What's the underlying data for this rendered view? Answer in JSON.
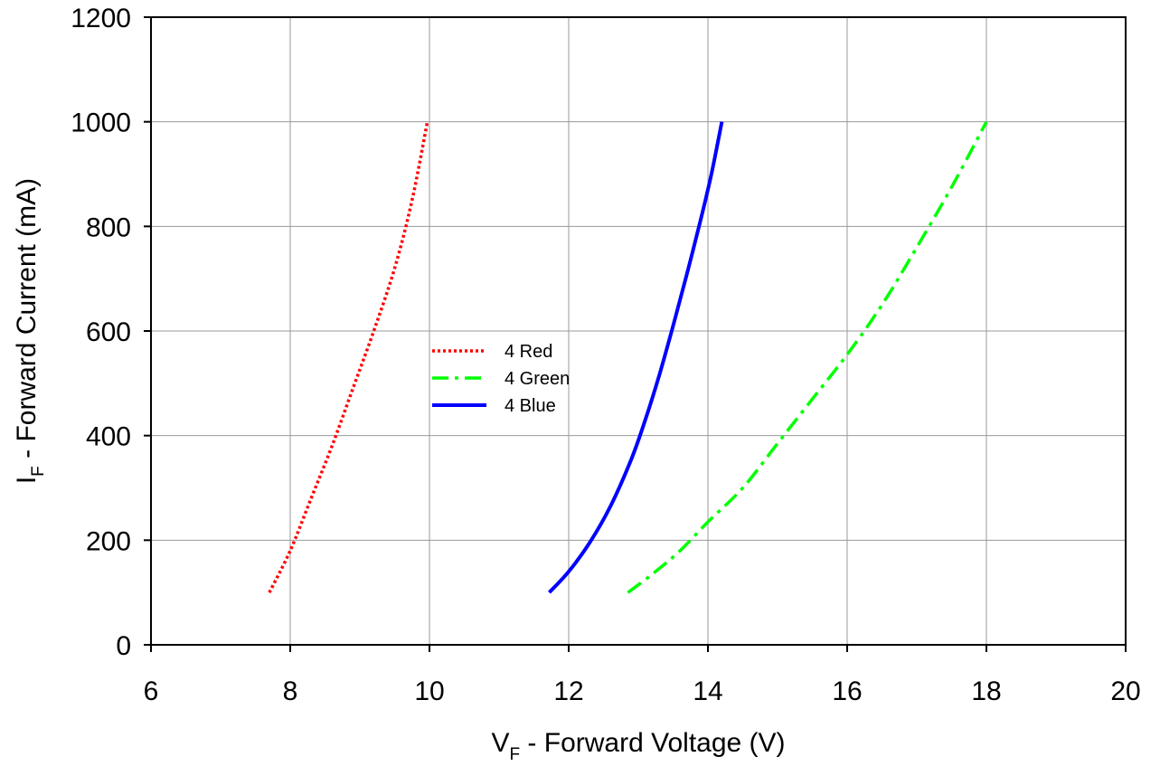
{
  "chart_data": {
    "type": "line",
    "xlabel": {
      "main": "V",
      "sub": "F",
      "rest": " - Forward Voltage (V)"
    },
    "ylabel": {
      "main": "I",
      "sub": "F",
      "rest": " - Forward Current (mA)"
    },
    "xlim": [
      6,
      20
    ],
    "ylim": [
      0,
      1200
    ],
    "xticks": [
      6,
      8,
      10,
      12,
      14,
      16,
      18,
      20
    ],
    "yticks": [
      0,
      200,
      400,
      600,
      800,
      1000,
      1200
    ],
    "grid": true,
    "legend_position": "center-left",
    "series": [
      {
        "name": "4 Red",
        "color": "#ff0000",
        "style": "dotted",
        "x": [
          7.7,
          8.0,
          8.3,
          8.6,
          8.9,
          9.2,
          9.5,
          9.75,
          9.97
        ],
        "y": [
          100,
          180,
          280,
          380,
          490,
          600,
          720,
          850,
          1000
        ]
      },
      {
        "name": "4 Green",
        "color": "#00ff00",
        "style": "dash-dot",
        "x": [
          12.85,
          13.2,
          13.6,
          14.0,
          14.5,
          15.0,
          15.5,
          16.0,
          16.5,
          17.0,
          17.5,
          18.0
        ],
        "y": [
          100,
          135,
          180,
          235,
          300,
          385,
          470,
          555,
          650,
          760,
          875,
          1000
        ]
      },
      {
        "name": "4 Blue",
        "color": "#0000ff",
        "style": "solid",
        "x": [
          11.72,
          12.0,
          12.3,
          12.6,
          12.9,
          13.1,
          13.3,
          13.5,
          13.7,
          13.9,
          14.05,
          14.2
        ],
        "y": [
          100,
          140,
          195,
          265,
          355,
          430,
          515,
          610,
          710,
          815,
          900,
          1000
        ]
      }
    ]
  }
}
